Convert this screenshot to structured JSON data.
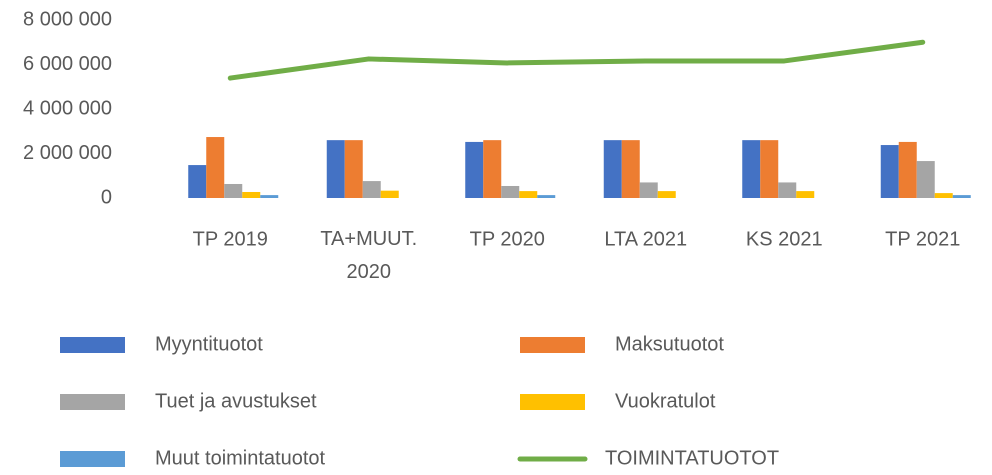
{
  "chart_data": {
    "type": "bar_line",
    "categories": [
      "TP 2019",
      "TA+MUUT. 2020",
      "TP 2020",
      "LTA 2021",
      "KS 2021",
      "TP 2021"
    ],
    "series": [
      {
        "name": "Myyntituotot",
        "type": "bar",
        "color": "#4472c4",
        "values": [
          1480000,
          2600000,
          2520000,
          2600000,
          2600000,
          2380000
        ]
      },
      {
        "name": "Maksutuotot",
        "type": "bar",
        "color": "#ed7d31",
        "values": [
          2740000,
          2600000,
          2600000,
          2600000,
          2600000,
          2520000
        ]
      },
      {
        "name": "Tuet ja avustukset",
        "type": "bar",
        "color": "#a5a5a5",
        "values": [
          630000,
          760000,
          540000,
          700000,
          700000,
          1660000
        ]
      },
      {
        "name": "Vuokratulot",
        "type": "bar",
        "color": "#ffc000",
        "values": [
          270000,
          330000,
          310000,
          310000,
          310000,
          220000
        ]
      },
      {
        "name": "Muut toimintatuotot",
        "type": "bar",
        "color": "#5b9bd5",
        "values": [
          130000,
          0,
          130000,
          0,
          0,
          130000
        ]
      },
      {
        "name": "TOIMINTATUOTOT",
        "type": "line",
        "color": "#70ad47",
        "values": [
          5390000,
          6250000,
          6070000,
          6160000,
          6160000,
          7000000
        ]
      }
    ],
    "ylim": [
      0,
      8000000
    ],
    "yticks": [
      {
        "value": 0,
        "label": "0"
      },
      {
        "value": 2000000,
        "label": "2 000 000"
      },
      {
        "value": 4000000,
        "label": "4 000 000"
      },
      {
        "value": 6000000,
        "label": "6 000 000"
      },
      {
        "value": 8000000,
        "label": "8 000 000"
      }
    ],
    "grid": false
  }
}
